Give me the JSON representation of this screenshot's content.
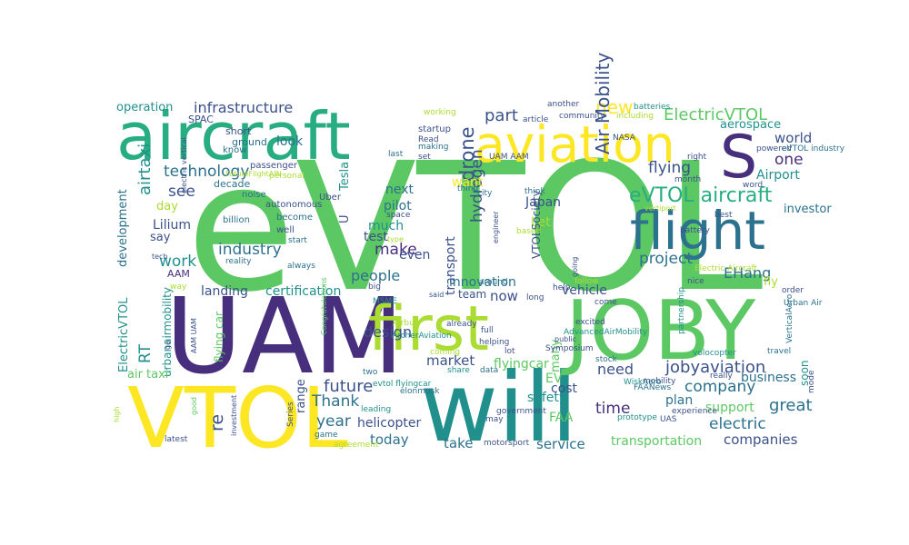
{
  "palette": {
    "v0": "#440154",
    "v1": "#472f7d",
    "v2": "#3b518b",
    "v3": "#2c718e",
    "v4": "#21908d",
    "v5": "#27ad81",
    "v6": "#5cc863",
    "v7": "#aadc32",
    "v8": "#fde725"
  },
  "words": [
    {
      "text": "eVTOL",
      "color": "v6"
    },
    {
      "text": "UAM",
      "color": "v1"
    },
    {
      "text": "will",
      "color": "v4"
    },
    {
      "text": "JOBY",
      "color": "v6"
    },
    {
      "text": "VTOL",
      "color": "v8"
    },
    {
      "text": "first",
      "color": "v7"
    },
    {
      "text": "aircraft",
      "color": "v5"
    },
    {
      "text": "aviation",
      "color": "v8"
    },
    {
      "text": "flight",
      "color": "v3"
    },
    {
      "text": "S",
      "color": "v1"
    },
    {
      "text": "eVTOL aircraft",
      "color": "v5"
    },
    {
      "text": "ElectricVTOL",
      "color": "v6"
    },
    {
      "text": "infrastructure",
      "color": "v2"
    },
    {
      "text": "technology",
      "color": "v3"
    },
    {
      "text": "new",
      "color": "v8"
    },
    {
      "text": "part",
      "color": "v2"
    },
    {
      "text": "flying",
      "color": "v2"
    },
    {
      "text": "see",
      "color": "v2"
    },
    {
      "text": "industry",
      "color": "v3"
    },
    {
      "text": "make",
      "color": "v1"
    },
    {
      "text": "world",
      "color": "v2"
    },
    {
      "text": "one",
      "color": "v1"
    },
    {
      "text": "project",
      "color": "v3"
    },
    {
      "text": "EHang",
      "color": "v3"
    },
    {
      "text": "Air Mobility",
      "color": "v2"
    },
    {
      "text": "drone",
      "color": "v2"
    },
    {
      "text": "hydrogen",
      "color": "v2"
    },
    {
      "text": "work",
      "color": "v4"
    },
    {
      "text": "people",
      "color": "v3"
    },
    {
      "text": "future",
      "color": "v2"
    },
    {
      "text": "Thank",
      "color": "v3"
    },
    {
      "text": "year",
      "color": "v3"
    },
    {
      "text": "certification",
      "color": "v4"
    },
    {
      "text": "now",
      "color": "v2"
    },
    {
      "text": "design",
      "color": "v2"
    },
    {
      "text": "market",
      "color": "v2"
    },
    {
      "text": "need",
      "color": "v2"
    },
    {
      "text": "time",
      "color": "v1"
    },
    {
      "text": "jobyaviation",
      "color": "v2"
    },
    {
      "text": "company",
      "color": "v3"
    },
    {
      "text": "electric",
      "color": "v3"
    },
    {
      "text": "great",
      "color": "v3"
    },
    {
      "text": "take",
      "color": "v3"
    },
    {
      "text": "service",
      "color": "v3"
    },
    {
      "text": "today",
      "color": "v3"
    },
    {
      "text": "companies",
      "color": "v2"
    },
    {
      "text": "transportation",
      "color": "v6"
    },
    {
      "text": "support",
      "color": "v6"
    },
    {
      "text": "business",
      "color": "v3"
    },
    {
      "text": "plan",
      "color": "v3"
    },
    {
      "text": "helicopter",
      "color": "v2"
    },
    {
      "text": "EV",
      "color": "v6"
    },
    {
      "text": "cost",
      "color": "v2"
    },
    {
      "text": "safety",
      "color": "v4"
    },
    {
      "text": "FAA",
      "color": "v6"
    },
    {
      "text": "vehicle",
      "color": "v2"
    },
    {
      "text": "team",
      "color": "v2"
    },
    {
      "text": "landing",
      "color": "v2"
    },
    {
      "text": "Lilium",
      "color": "v2"
    },
    {
      "text": "say",
      "color": "v2"
    },
    {
      "text": "day",
      "color": "v7"
    },
    {
      "text": "development",
      "color": "v3"
    },
    {
      "text": "investor",
      "color": "v3"
    },
    {
      "text": "Airport",
      "color": "v4"
    },
    {
      "text": "aerospace",
      "color": "v4"
    },
    {
      "text": "Japan",
      "color": "v2"
    },
    {
      "text": "pilot",
      "color": "v3"
    },
    {
      "text": "test",
      "color": "v2"
    },
    {
      "text": "much",
      "color": "v4"
    },
    {
      "text": "next",
      "color": "v3"
    },
    {
      "text": "even",
      "color": "v2"
    },
    {
      "text": "Let",
      "color": "v7"
    },
    {
      "text": "want",
      "color": "v8"
    },
    {
      "text": "look",
      "color": "v3"
    },
    {
      "text": "operation",
      "color": "v4"
    },
    {
      "text": "transport",
      "color": "v2"
    },
    {
      "text": "innovation",
      "color": "v3"
    },
    {
      "text": "fly",
      "color": "v7"
    },
    {
      "text": "flyingcar",
      "color": "v6"
    },
    {
      "text": "re",
      "color": "v2"
    },
    {
      "text": "U",
      "color": "v2"
    },
    {
      "text": "Tesla",
      "color": "v4"
    },
    {
      "text": "airtaxi",
      "color": "v4"
    },
    {
      "text": "RT",
      "color": "v4"
    },
    {
      "text": "ElectricVTOL",
      "color": "v4"
    },
    {
      "text": "urbanairmobility",
      "color": "v4"
    },
    {
      "text": "flying car",
      "color": "v6"
    },
    {
      "text": "air taxi",
      "color": "v6"
    },
    {
      "text": "many",
      "color": "v6"
    },
    {
      "text": "range",
      "color": "v2"
    },
    {
      "text": "soon",
      "color": "v4"
    },
    {
      "text": "VTOLSociety",
      "color": "v2"
    },
    {
      "text": "AAM",
      "color": "v1"
    },
    {
      "text": "SPAC",
      "color": "v2"
    },
    {
      "text": "short",
      "color": "v2"
    },
    {
      "text": "ground",
      "color": "v3"
    },
    {
      "text": "know",
      "color": "v3"
    },
    {
      "text": "decade",
      "color": "v3"
    },
    {
      "text": "noise",
      "color": "v3"
    },
    {
      "text": "passenger",
      "color": "v2"
    },
    {
      "text": "autonomous",
      "color": "v2"
    },
    {
      "text": "Uber",
      "color": "v2"
    },
    {
      "text": "billion",
      "color": "v3"
    },
    {
      "text": "become",
      "color": "v3"
    },
    {
      "text": "well",
      "color": "v2"
    },
    {
      "text": "start",
      "color": "v3"
    },
    {
      "text": "always",
      "color": "v3"
    },
    {
      "text": "reality",
      "color": "v3"
    },
    {
      "text": "way",
      "color": "v7"
    },
    {
      "text": "working",
      "color": "v7"
    },
    {
      "text": "startup",
      "color": "v2"
    },
    {
      "text": "Read",
      "color": "v2"
    },
    {
      "text": "making",
      "color": "v3"
    },
    {
      "text": "set",
      "color": "v2"
    },
    {
      "text": "last",
      "color": "v3"
    },
    {
      "text": "space",
      "color": "v2"
    },
    {
      "text": "big",
      "color": "v2"
    },
    {
      "text": "thing",
      "color": "v3"
    },
    {
      "text": "city",
      "color": "v3"
    },
    {
      "text": "think",
      "color": "v3"
    },
    {
      "text": "based",
      "color": "v7"
    },
    {
      "text": "another",
      "color": "v2"
    },
    {
      "text": "article",
      "color": "v2"
    },
    {
      "text": "community",
      "color": "v2"
    },
    {
      "text": "batteries",
      "color": "v4"
    },
    {
      "text": "including",
      "color": "v7"
    },
    {
      "text": "NASA",
      "color": "v2"
    },
    {
      "text": "right",
      "color": "v2"
    },
    {
      "text": "month",
      "color": "v2"
    },
    {
      "text": "powered",
      "color": "v2"
    },
    {
      "text": "eVTOL industry",
      "color": "v3"
    },
    {
      "text": "word",
      "color": "v2"
    },
    {
      "text": "best",
      "color": "v2"
    },
    {
      "text": "vertiport",
      "color": "v7"
    },
    {
      "text": "battery",
      "color": "v2"
    },
    {
      "text": "Electric Aircraft",
      "color": "v7"
    },
    {
      "text": "nice",
      "color": "v2"
    },
    {
      "text": "order",
      "color": "v2"
    },
    {
      "text": "Urban Air",
      "color": "v3"
    },
    {
      "text": "come",
      "color": "v2"
    },
    {
      "text": "follow",
      "color": "v7"
    },
    {
      "text": "long",
      "color": "v2"
    },
    {
      "text": "around",
      "color": "v3"
    },
    {
      "text": "help",
      "color": "v2"
    },
    {
      "text": "engineer",
      "color": "v2"
    },
    {
      "text": "going",
      "color": "v2"
    },
    {
      "text": "partnership",
      "color": "v4"
    },
    {
      "text": "AdvancedAirMobility",
      "color": "v4"
    },
    {
      "text": "excited",
      "color": "v2"
    },
    {
      "text": "Symposium",
      "color": "v2"
    },
    {
      "text": "public",
      "color": "v2"
    },
    {
      "text": "MSME",
      "color": "v4"
    },
    {
      "text": "Airbus",
      "color": "v7"
    },
    {
      "text": "ArcherAviation",
      "color": "v4"
    },
    {
      "text": "already",
      "color": "v2"
    },
    {
      "text": "helping",
      "color": "v2"
    },
    {
      "text": "full",
      "color": "v2"
    },
    {
      "text": "lot",
      "color": "v2"
    },
    {
      "text": "coming",
      "color": "v7"
    },
    {
      "text": "share",
      "color": "v4"
    },
    {
      "text": "data",
      "color": "v3"
    },
    {
      "text": "stock",
      "color": "v3"
    },
    {
      "text": "WiskAero",
      "color": "v4"
    },
    {
      "text": "FAANews",
      "color": "v3"
    },
    {
      "text": "mobility",
      "color": "v2"
    },
    {
      "text": "prototype",
      "color": "v4"
    },
    {
      "text": "UAS",
      "color": "v2"
    },
    {
      "text": "experience",
      "color": "v2"
    },
    {
      "text": "really",
      "color": "v2"
    },
    {
      "text": "volocopter",
      "color": "v4"
    },
    {
      "text": "travel",
      "color": "v3"
    },
    {
      "text": "VerticalAero",
      "color": "v3"
    },
    {
      "text": "mode",
      "color": "v2"
    },
    {
      "text": "two",
      "color": "v3"
    },
    {
      "text": "evtol flyingcar",
      "color": "v4"
    },
    {
      "text": "leading",
      "color": "v4"
    },
    {
      "text": "elonmusk",
      "color": "v3"
    },
    {
      "text": "government",
      "color": "v2"
    },
    {
      "text": "may",
      "color": "v2"
    },
    {
      "text": "Series",
      "color": "v2"
    },
    {
      "text": "game",
      "color": "v3"
    },
    {
      "text": "agreement",
      "color": "v7"
    },
    {
      "text": "motorsport",
      "color": "v2"
    },
    {
      "text": "good",
      "color": "v6"
    },
    {
      "text": "investment",
      "color": "v2"
    },
    {
      "text": "latest",
      "color": "v2"
    },
    {
      "text": "high",
      "color": "v7"
    },
    {
      "text": "go",
      "color": "v2"
    },
    {
      "text": "AAM UAM",
      "color": "v2"
    },
    {
      "text": "Congratulations",
      "color": "v6"
    },
    {
      "text": "electric vertical",
      "color": "v2"
    },
    {
      "text": "personal",
      "color": "v7"
    },
    {
      "text": "FutureFlightAIN",
      "color": "v7"
    },
    {
      "text": "type",
      "color": "v7"
    },
    {
      "text": "said",
      "color": "v2"
    },
    {
      "text": "UAM AAM",
      "color": "v2"
    },
    {
      "text": "tech",
      "color": "v2"
    },
    {
      "text": "Check",
      "color": "v2"
    },
    {
      "text": "t",
      "color": "v2"
    }
  ]
}
